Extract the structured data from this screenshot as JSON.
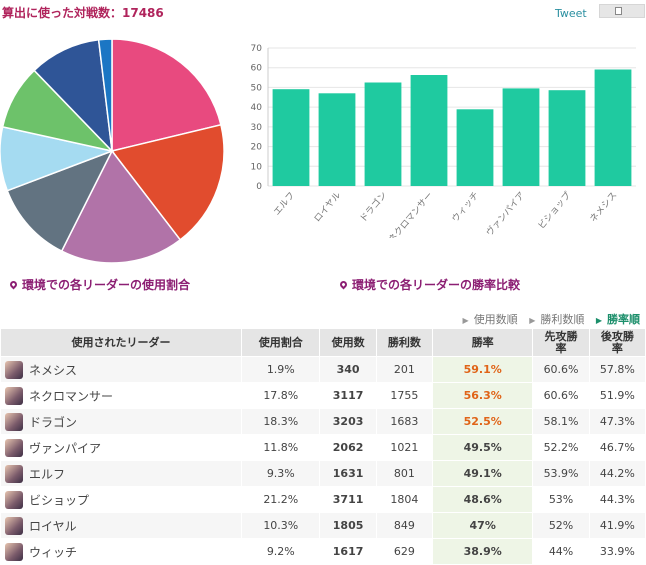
{
  "header": {
    "title": "算出に使った対戦数：17486",
    "tweet_label": "Tweet"
  },
  "captions": {
    "pie": "環境での各リーダーの使用割合",
    "bar": "環境での各リーダーの勝率比較"
  },
  "sort_options": [
    {
      "label": "使用数順",
      "active": false
    },
    {
      "label": "勝利数順",
      "active": false
    },
    {
      "label": "勝率順",
      "active": true
    }
  ],
  "table": {
    "headers": [
      "使用されたリーダー",
      "使用割合",
      "使用数",
      "勝利数",
      "勝率",
      "先攻勝率",
      "後攻勝率"
    ],
    "rows": [
      {
        "leader": "ネメシス",
        "share": "1.9%",
        "uses": "340",
        "wins": "201",
        "winrate": "59.1%",
        "first": "60.6%",
        "second": "57.8%"
      },
      {
        "leader": "ネクロマンサー",
        "share": "17.8%",
        "uses": "3117",
        "wins": "1755",
        "winrate": "56.3%",
        "first": "60.6%",
        "second": "51.9%"
      },
      {
        "leader": "ドラゴン",
        "share": "18.3%",
        "uses": "3203",
        "wins": "1683",
        "winrate": "52.5%",
        "first": "58.1%",
        "second": "47.3%"
      },
      {
        "leader": "ヴァンパイア",
        "share": "11.8%",
        "uses": "2062",
        "wins": "1021",
        "winrate": "49.5%",
        "first": "52.2%",
        "second": "46.7%"
      },
      {
        "leader": "エルフ",
        "share": "9.3%",
        "uses": "1631",
        "wins": "801",
        "winrate": "49.1%",
        "first": "53.9%",
        "second": "44.2%"
      },
      {
        "leader": "ビショップ",
        "share": "21.2%",
        "uses": "3711",
        "wins": "1804",
        "winrate": "48.6%",
        "first": "53%",
        "second": "44.3%"
      },
      {
        "leader": "ロイヤル",
        "share": "10.3%",
        "uses": "1805",
        "wins": "849",
        "winrate": "47%",
        "first": "52%",
        "second": "41.9%"
      },
      {
        "leader": "ウィッチ",
        "share": "9.2%",
        "uses": "1617",
        "wins": "629",
        "winrate": "38.9%",
        "first": "44%",
        "second": "33.9%"
      }
    ]
  },
  "chart_data": [
    {
      "type": "pie",
      "slices": [
        {
          "label": "ビショップ",
          "value": 21.2,
          "color": "#e84a7f"
        },
        {
          "label": "ドラゴン",
          "value": 18.3,
          "color": "#e14c2e"
        },
        {
          "label": "ネクロマンサー",
          "value": 17.8,
          "color": "#b173a8"
        },
        {
          "label": "ヴァンパイア",
          "value": 11.8,
          "color": "#627381"
        },
        {
          "label": "ウィッチ",
          "value": 9.2,
          "color": "#a5dbf1"
        },
        {
          "label": "エルフ",
          "value": 9.3,
          "color": "#6dc26a"
        },
        {
          "label": "ロイヤル",
          "value": 10.3,
          "color": "#2f5597"
        },
        {
          "label": "ネメシス",
          "value": 1.9,
          "color": "#1b76c4"
        }
      ]
    },
    {
      "type": "bar",
      "categories": [
        "エルフ",
        "ロイヤル",
        "ドラゴン",
        "ネクロマンサー",
        "ウィッチ",
        "ヴァンパイア",
        "ビショップ",
        "ネメシス"
      ],
      "values": [
        49.1,
        47.0,
        52.5,
        56.3,
        38.9,
        49.5,
        48.6,
        59.1
      ],
      "ylim": [
        0,
        70
      ],
      "yticks": [
        0,
        10,
        20,
        30,
        40,
        50,
        60,
        70
      ],
      "grid": true,
      "color": "#1fcaa0"
    }
  ]
}
